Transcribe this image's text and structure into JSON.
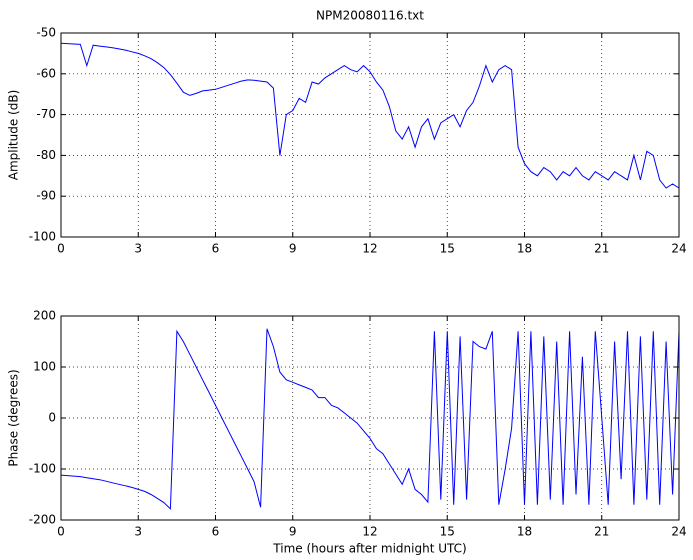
{
  "chart_data": [
    {
      "type": "line",
      "title": "NPM20080116.txt",
      "y_label": "Amplitude (dB)",
      "x": [
        0,
        0.25,
        0.5,
        0.75,
        1,
        1.25,
        1.5,
        1.75,
        2,
        2.25,
        2.5,
        2.75,
        3,
        3.25,
        3.5,
        3.75,
        4,
        4.25,
        4.5,
        4.75,
        5,
        5.25,
        5.5,
        5.75,
        6,
        6.25,
        6.5,
        6.75,
        7,
        7.25,
        7.5,
        7.75,
        8,
        8.25,
        8.5,
        8.75,
        9,
        9.25,
        9.5,
        9.75,
        10,
        10.25,
        10.5,
        10.75,
        11,
        11.25,
        11.5,
        11.75,
        12,
        12.25,
        12.5,
        12.75,
        13,
        13.25,
        13.5,
        13.75,
        14,
        14.25,
        14.5,
        14.75,
        15,
        15.25,
        15.5,
        15.75,
        16,
        16.25,
        16.5,
        16.75,
        17,
        17.25,
        17.5,
        17.75,
        18,
        18.25,
        18.5,
        18.75,
        19,
        19.25,
        19.5,
        19.75,
        20,
        20.25,
        20.5,
        20.75,
        21,
        21.25,
        21.5,
        21.75,
        22,
        22.25,
        22.5,
        22.75,
        23,
        23.25,
        23.5,
        23.75,
        24
      ],
      "series": [
        {
          "color": "#0000ff",
          "values": [
            -52.5,
            -52.6,
            -52.7,
            -52.8,
            -58,
            -53,
            -53.2,
            -53.4,
            -53.6,
            -53.9,
            -54.2,
            -54.6,
            -55,
            -55.6,
            -56.3,
            -57.3,
            -58.5,
            -60.2,
            -62.3,
            -64.5,
            -65.3,
            -64.8,
            -64.2,
            -64,
            -63.8,
            -63.3,
            -62.8,
            -62.3,
            -61.8,
            -61.5,
            -61.6,
            -61.8,
            -62,
            -63.5,
            -80,
            -70,
            -69,
            -66,
            -67,
            -62,
            -62.5,
            -61,
            -60,
            -59,
            -58,
            -59,
            -59.5,
            -58,
            -59.5,
            -62,
            -64,
            -68,
            -74,
            -76,
            -73,
            -78,
            -73,
            -71,
            -76,
            -72,
            -71,
            -70,
            -73,
            -69,
            -67,
            -63,
            -58,
            -62,
            -59,
            -58,
            -59,
            -78,
            -82,
            -84,
            -85,
            -83,
            -84,
            -86,
            -84,
            -85,
            -83,
            -85,
            -86,
            -84,
            -85,
            -86,
            -84,
            -85,
            -86,
            -80,
            -86,
            -79,
            -80,
            -86,
            -88,
            -87,
            -88
          ]
        }
      ],
      "xlim": [
        0,
        24
      ],
      "xticks": [
        0,
        3,
        6,
        9,
        12,
        15,
        18,
        21,
        24
      ],
      "ylim": [
        -100,
        -50
      ],
      "yticks": [
        -100,
        -90,
        -80,
        -70,
        -60,
        -50
      ],
      "grid": true
    },
    {
      "type": "line",
      "y_label": "Phase (degrees)",
      "x_label": "Time (hours after midnight UTC)",
      "x": [
        0,
        0.25,
        0.5,
        0.75,
        1,
        1.25,
        1.5,
        1.75,
        2,
        2.25,
        2.5,
        2.75,
        3,
        3.25,
        3.5,
        3.75,
        4,
        4.25,
        4.5,
        4.75,
        5,
        5.25,
        5.5,
        5.75,
        6,
        6.25,
        6.5,
        6.75,
        7,
        7.25,
        7.5,
        7.75,
        8,
        8.25,
        8.5,
        8.75,
        9,
        9.25,
        9.5,
        9.75,
        10,
        10.25,
        10.5,
        10.75,
        11,
        11.25,
        11.5,
        11.75,
        12,
        12.25,
        12.5,
        12.75,
        13,
        13.25,
        13.5,
        13.75,
        14,
        14.25,
        14.5,
        14.75,
        15,
        15.25,
        15.5,
        15.75,
        16,
        16.25,
        16.5,
        16.75,
        17,
        17.25,
        17.5,
        17.75,
        18,
        18.25,
        18.5,
        18.75,
        19,
        19.25,
        19.5,
        19.75,
        20,
        20.25,
        20.5,
        20.75,
        21,
        21.25,
        21.5,
        21.75,
        22,
        22.25,
        22.5,
        22.75,
        23,
        23.25,
        23.5,
        23.75,
        24
      ],
      "series": [
        {
          "color": "#0000ff",
          "values": [
            -112,
            -113,
            -114,
            -115,
            -117,
            -119,
            -121,
            -124,
            -127,
            -130,
            -133,
            -136,
            -140,
            -144,
            -150,
            -158,
            -166,
            -178,
            170,
            150,
            125,
            100,
            75,
            50,
            25,
            0,
            -25,
            -50,
            -75,
            -100,
            -125,
            -175,
            175,
            140,
            90,
            75,
            70,
            65,
            60,
            55,
            40,
            40,
            25,
            20,
            10,
            0,
            -10,
            -25,
            -40,
            -60,
            -70,
            -90,
            -110,
            -130,
            -100,
            -140,
            -150,
            -165,
            170,
            -160,
            170,
            -170,
            160,
            -160,
            150,
            140,
            135,
            170,
            -170,
            -100,
            -20,
            170,
            -170,
            170,
            -170,
            160,
            -160,
            150,
            -170,
            170,
            -150,
            120,
            -170,
            170,
            0,
            -170,
            150,
            -120,
            170,
            -170,
            160,
            -160,
            170,
            -170,
            150,
            -150,
            170
          ]
        }
      ],
      "xlim": [
        0,
        24
      ],
      "xticks": [
        0,
        3,
        6,
        9,
        12,
        15,
        18,
        21,
        24
      ],
      "ylim": [
        -200,
        200
      ],
      "yticks": [
        -200,
        -100,
        0,
        100,
        200
      ],
      "grid": true
    }
  ]
}
